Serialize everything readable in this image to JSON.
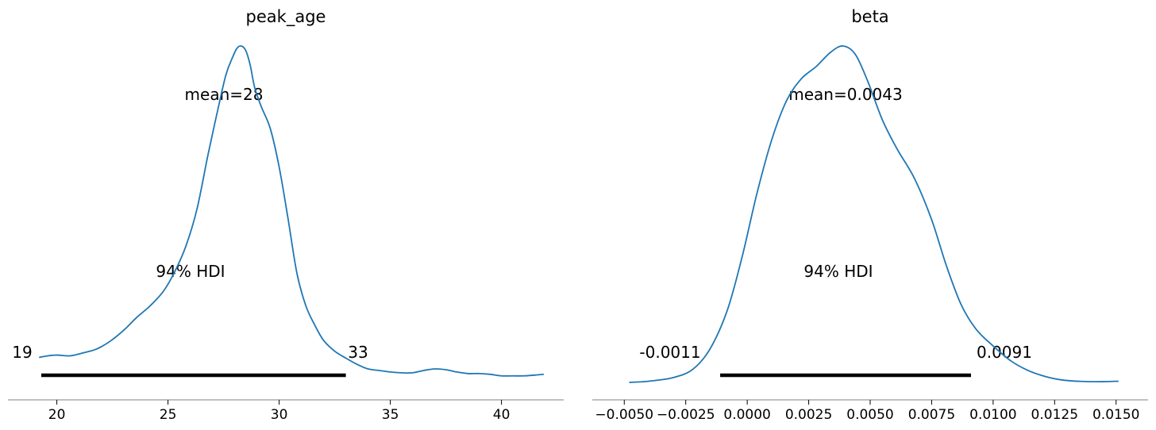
{
  "chart_data": [
    {
      "type": "line",
      "title": "peak_age",
      "xlabel": "",
      "ylabel": "",
      "xlim": [
        17.8,
        42.8
      ],
      "grid": false,
      "line_color": "#1f77b4",
      "x_ticks": [
        20,
        25,
        30,
        35,
        40
      ],
      "x_tick_labels": [
        "20",
        "25",
        "30",
        "35",
        "40"
      ],
      "hdi_label": "94% HDI",
      "hdi": [
        19.3,
        33.0
      ],
      "hdi_low_label": "19",
      "hdi_high_label": "33",
      "mean_label": "mean=28",
      "mean": 28.0,
      "density_x": [
        19.2,
        19.6,
        20.0,
        20.6,
        21.2,
        21.8,
        22.4,
        23.0,
        23.6,
        24.2,
        24.8,
        25.3,
        25.8,
        26.3,
        26.8,
        27.2,
        27.6,
        27.9,
        28.1,
        28.3,
        28.5,
        28.7,
        28.9,
        29.2,
        29.6,
        30.0,
        30.4,
        30.8,
        31.2,
        31.6,
        32.0,
        32.5,
        33.0,
        33.5,
        34.0,
        34.5,
        35.0,
        35.5,
        36.0,
        36.5,
        37.0,
        37.5,
        38.0,
        38.5,
        39.0,
        39.5,
        40.0,
        40.5,
        41.0,
        41.5,
        41.9
      ],
      "density_y": [
        0.016,
        0.018,
        0.019,
        0.018,
        0.022,
        0.027,
        0.037,
        0.051,
        0.068,
        0.083,
        0.102,
        0.127,
        0.16,
        0.208,
        0.279,
        0.332,
        0.382,
        0.405,
        0.417,
        0.42,
        0.414,
        0.395,
        0.366,
        0.341,
        0.313,
        0.263,
        0.196,
        0.125,
        0.083,
        0.058,
        0.038,
        0.024,
        0.015,
        0.007,
        0.001,
        -0.001,
        -0.003,
        -0.004,
        -0.004,
        -0.001,
        0.001,
        -0.0,
        -0.003,
        -0.005,
        -0.005,
        -0.006,
        -0.008,
        -0.008,
        -0.008,
        -0.007,
        -0.006
      ]
    },
    {
      "type": "line",
      "title": "beta",
      "xlabel": "",
      "ylabel": "",
      "xlim": [
        -0.0063,
        0.0163
      ],
      "grid": false,
      "line_color": "#1f77b4",
      "x_ticks": [
        -0.005,
        -0.0025,
        0.0,
        0.0025,
        0.005,
        0.0075,
        0.01,
        0.0125,
        0.015
      ],
      "x_tick_labels": [
        "−0.0050",
        "−0.0025",
        "0.0000",
        "0.0025",
        "0.0050",
        "0.0075",
        "0.0100",
        "0.0125",
        "0.0150"
      ],
      "hdi_label": "94% HDI",
      "hdi": [
        -0.0011,
        0.0091
      ],
      "hdi_low_label": "-0.0011",
      "hdi_high_label": "0.0091",
      "mean_label": "mean=0.0043",
      "mean": 0.0043,
      "density_x": [
        -0.0048,
        -0.004,
        -0.003,
        -0.0022,
        -0.0015,
        -0.0008,
        -0.0002,
        0.0004,
        0.001,
        0.0016,
        0.0022,
        0.0028,
        0.0034,
        0.0039,
        0.0044,
        0.0049,
        0.0055,
        0.0061,
        0.0068,
        0.0075,
        0.0081,
        0.0087,
        0.0093,
        0.01,
        0.0107,
        0.0114,
        0.0121,
        0.0128,
        0.0136,
        0.0144,
        0.0151
      ],
      "density_y": [
        0.0,
        0.5,
        2.0,
        5.5,
        14,
        30,
        52,
        78,
        100,
        116,
        125,
        130,
        136,
        138.5,
        135,
        124,
        108,
        96,
        84,
        67,
        48,
        32,
        22,
        15,
        9,
        5,
        2.5,
        1.0,
        0.4,
        0.3,
        0.5
      ]
    }
  ]
}
